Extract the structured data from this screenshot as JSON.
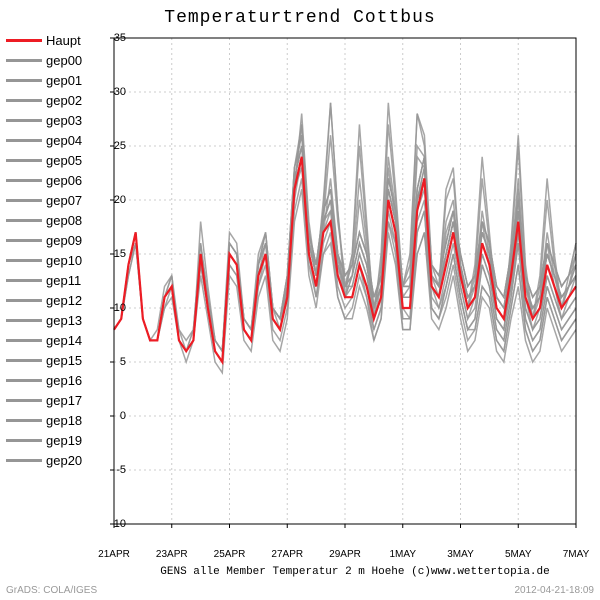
{
  "title": "Temperaturtrend Cottbus",
  "subtitle": "GENS alle Member Temperatur 2 m Hoehe (c)www.wettertopia.de",
  "bottom_left": "GrADS: COLA/IGES",
  "bottom_right": "2012-04-21-18:09",
  "plot": {
    "type": "line",
    "background_color": "#ffffff",
    "border_color": "#000000",
    "grid_color": "#cccccc",
    "ylim": [
      -10,
      35
    ],
    "ytick_step": 5,
    "yticks": [
      -10,
      -5,
      0,
      5,
      10,
      15,
      20,
      25,
      30,
      35
    ],
    "xlim": [
      0,
      64
    ],
    "xticks": [
      0,
      8,
      16,
      24,
      32,
      40,
      48,
      56,
      64
    ],
    "xtick_labels": [
      "21APR",
      "23APR",
      "25APR",
      "27APR",
      "29APR",
      "1MAY",
      "3MAY",
      "5MAY",
      "7MAY"
    ],
    "member_color": "#969696",
    "member_line_width": 1.5,
    "haupt_color": "#ed1c24",
    "haupt_line_width": 2.2,
    "haupt": [
      8,
      9,
      14,
      17,
      9,
      7,
      7,
      11,
      12,
      7,
      6,
      7,
      15,
      10,
      6,
      5,
      15,
      14,
      8,
      7,
      13,
      15,
      9,
      8,
      11,
      21,
      24,
      15,
      12,
      17,
      18,
      13,
      11,
      11,
      14,
      12,
      9,
      11,
      20,
      17,
      10,
      10,
      19,
      22,
      12,
      11,
      14,
      17,
      13,
      10,
      11,
      16,
      14,
      10,
      9,
      13,
      18,
      11,
      9,
      10,
      14,
      12,
      10,
      11,
      12
    ],
    "members": [
      [
        8,
        9,
        14,
        17,
        9,
        7,
        7,
        11,
        12,
        7,
        6,
        7,
        15,
        10,
        6,
        5,
        15,
        14,
        8,
        7,
        13,
        15,
        9,
        8,
        12,
        21,
        23,
        15,
        12,
        17,
        19,
        13,
        11,
        12,
        15,
        13,
        9,
        11,
        20,
        17,
        10,
        10,
        19,
        21,
        12,
        11,
        14,
        17,
        13,
        10,
        11,
        16,
        14,
        10,
        9,
        13,
        18,
        11,
        9,
        10,
        14,
        12,
        10,
        11,
        12
      ],
      [
        8,
        9,
        13,
        16,
        9,
        7,
        7,
        10,
        12,
        7,
        6,
        7,
        14,
        10,
        6,
        5,
        14,
        13,
        8,
        7,
        12,
        15,
        9,
        8,
        11,
        20,
        24,
        16,
        13,
        18,
        20,
        14,
        11,
        13,
        16,
        14,
        10,
        12,
        21,
        18,
        11,
        11,
        20,
        23,
        13,
        11,
        15,
        18,
        14,
        11,
        12,
        17,
        15,
        11,
        10,
        14,
        19,
        12,
        10,
        11,
        15,
        13,
        11,
        12,
        13
      ],
      [
        8,
        9,
        14,
        17,
        9,
        7,
        7,
        11,
        13,
        7,
        6,
        7,
        15,
        11,
        7,
        6,
        16,
        15,
        9,
        8,
        14,
        16,
        10,
        9,
        12,
        22,
        25,
        16,
        13,
        18,
        19,
        14,
        12,
        12,
        15,
        13,
        10,
        12,
        21,
        18,
        11,
        11,
        20,
        22,
        13,
        12,
        15,
        18,
        13,
        10,
        11,
        16,
        14,
        10,
        9,
        13,
        18,
        11,
        9,
        10,
        14,
        12,
        10,
        11,
        12
      ],
      [
        8,
        9,
        14,
        16,
        9,
        7,
        7,
        11,
        12,
        7,
        6,
        7,
        14,
        10,
        6,
        5,
        14,
        13,
        8,
        7,
        12,
        14,
        8,
        7,
        10,
        19,
        22,
        14,
        11,
        16,
        18,
        12,
        10,
        11,
        14,
        12,
        8,
        10,
        19,
        16,
        9,
        9,
        18,
        20,
        11,
        10,
        13,
        16,
        12,
        9,
        10,
        15,
        13,
        9,
        8,
        12,
        17,
        10,
        8,
        9,
        13,
        11,
        9,
        10,
        11
      ],
      [
        8,
        9,
        14,
        17,
        9,
        7,
        7,
        11,
        12,
        8,
        6,
        8,
        16,
        11,
        7,
        6,
        16,
        15,
        9,
        8,
        14,
        17,
        10,
        9,
        13,
        23,
        26,
        17,
        14,
        19,
        21,
        15,
        13,
        14,
        17,
        15,
        11,
        13,
        22,
        19,
        12,
        12,
        21,
        24,
        14,
        13,
        16,
        19,
        15,
        12,
        13,
        18,
        16,
        12,
        11,
        15,
        20,
        13,
        11,
        12,
        16,
        14,
        12,
        13,
        14
      ],
      [
        8,
        9,
        14,
        17,
        9,
        7,
        7,
        11,
        13,
        7,
        6,
        8,
        15,
        11,
        7,
        6,
        16,
        15,
        9,
        8,
        14,
        16,
        10,
        9,
        12,
        22,
        25,
        16,
        13,
        18,
        20,
        14,
        12,
        13,
        16,
        14,
        10,
        12,
        21,
        18,
        11,
        11,
        20,
        22,
        13,
        12,
        15,
        18,
        14,
        11,
        12,
        17,
        15,
        11,
        10,
        14,
        19,
        12,
        10,
        11,
        15,
        13,
        11,
        12,
        13
      ],
      [
        8,
        9,
        13,
        16,
        9,
        7,
        7,
        10,
        11,
        7,
        5,
        7,
        13,
        9,
        5,
        4,
        13,
        12,
        7,
        6,
        11,
        13,
        7,
        6,
        9,
        18,
        21,
        13,
        10,
        15,
        17,
        11,
        9,
        10,
        13,
        11,
        7,
        9,
        18,
        15,
        8,
        8,
        17,
        19,
        10,
        9,
        12,
        15,
        11,
        8,
        9,
        14,
        12,
        8,
        7,
        11,
        16,
        9,
        7,
        8,
        12,
        10,
        8,
        9,
        10
      ],
      [
        8,
        9,
        14,
        17,
        9,
        7,
        7,
        11,
        12,
        7,
        6,
        7,
        15,
        10,
        6,
        5,
        15,
        14,
        8,
        7,
        13,
        15,
        9,
        8,
        11,
        21,
        24,
        15,
        12,
        18,
        26,
        18,
        13,
        14,
        22,
        16,
        10,
        13,
        24,
        19,
        12,
        13,
        25,
        24,
        13,
        12,
        18,
        20,
        13,
        10,
        12,
        19,
        15,
        10,
        9,
        14,
        22,
        12,
        9,
        11,
        17,
        13,
        10,
        12,
        14
      ],
      [
        8,
        9,
        14,
        17,
        9,
        7,
        7,
        11,
        12,
        7,
        6,
        7,
        15,
        10,
        6,
        5,
        15,
        14,
        8,
        7,
        13,
        15,
        9,
        8,
        11,
        21,
        27,
        17,
        13,
        19,
        29,
        19,
        12,
        15,
        25,
        17,
        10,
        14,
        27,
        20,
        12,
        14,
        28,
        25,
        13,
        12,
        20,
        22,
        14,
        10,
        13,
        22,
        16,
        10,
        9,
        15,
        25,
        13,
        9,
        12,
        20,
        14,
        10,
        12,
        15
      ],
      [
        8,
        9,
        14,
        17,
        9,
        7,
        7,
        11,
        12,
        7,
        6,
        7,
        15,
        10,
        6,
        5,
        15,
        14,
        8,
        7,
        13,
        16,
        10,
        8,
        12,
        22,
        25,
        16,
        13,
        18,
        20,
        14,
        12,
        13,
        16,
        14,
        10,
        12,
        21,
        18,
        11,
        11,
        20,
        22,
        13,
        12,
        15,
        18,
        14,
        11,
        12,
        17,
        15,
        11,
        10,
        14,
        19,
        12,
        10,
        11,
        15,
        13,
        11,
        12,
        13
      ],
      [
        8,
        9,
        14,
        17,
        9,
        7,
        7,
        11,
        12,
        7,
        6,
        7,
        15,
        10,
        6,
        5,
        15,
        14,
        8,
        7,
        13,
        15,
        9,
        8,
        11,
        21,
        24,
        15,
        12,
        17,
        18,
        13,
        11,
        11,
        14,
        11,
        8,
        10,
        18,
        16,
        9,
        9,
        17,
        19,
        10,
        9,
        12,
        15,
        11,
        8,
        9,
        14,
        12,
        8,
        7,
        11,
        16,
        9,
        7,
        8,
        12,
        10,
        8,
        9,
        10
      ],
      [
        8,
        9,
        14,
        17,
        9,
        7,
        7,
        11,
        12,
        7,
        6,
        7,
        15,
        10,
        6,
        5,
        15,
        14,
        8,
        7,
        13,
        15,
        9,
        8,
        11,
        21,
        24,
        15,
        12,
        17,
        18,
        13,
        11,
        11,
        14,
        12,
        9,
        11,
        20,
        17,
        10,
        9,
        15,
        17,
        10,
        9,
        11,
        14,
        10,
        7,
        8,
        12,
        11,
        7,
        6,
        10,
        14,
        8,
        6,
        7,
        11,
        9,
        7,
        8,
        9
      ],
      [
        8,
        9,
        14,
        17,
        9,
        7,
        7,
        11,
        12,
        7,
        6,
        7,
        15,
        10,
        6,
        5,
        15,
        14,
        8,
        7,
        13,
        15,
        9,
        8,
        11,
        21,
        24,
        15,
        12,
        17,
        18,
        13,
        11,
        11,
        14,
        12,
        9,
        11,
        20,
        17,
        10,
        10,
        19,
        22,
        12,
        11,
        14,
        17,
        13,
        10,
        11,
        15,
        13,
        9,
        8,
        12,
        17,
        10,
        8,
        9,
        13,
        11,
        9,
        10,
        11
      ],
      [
        8,
        9,
        14,
        17,
        9,
        7,
        7,
        11,
        12,
        7,
        6,
        7,
        15,
        10,
        6,
        5,
        15,
        14,
        8,
        7,
        13,
        15,
        9,
        8,
        11,
        21,
        24,
        15,
        12,
        17,
        22,
        15,
        11,
        13,
        20,
        15,
        9,
        12,
        23,
        18,
        11,
        12,
        24,
        23,
        12,
        11,
        17,
        19,
        12,
        9,
        11,
        18,
        14,
        9,
        8,
        13,
        21,
        11,
        8,
        10,
        16,
        12,
        9,
        11,
        13
      ],
      [
        8,
        9,
        14,
        17,
        9,
        7,
        7,
        11,
        12,
        7,
        6,
        7,
        18,
        12,
        7,
        6,
        17,
        16,
        9,
        8,
        15,
        17,
        10,
        9,
        13,
        23,
        27,
        17,
        14,
        19,
        21,
        15,
        12,
        14,
        17,
        15,
        11,
        13,
        22,
        19,
        12,
        12,
        21,
        24,
        14,
        13,
        16,
        19,
        15,
        12,
        13,
        18,
        16,
        12,
        11,
        15,
        20,
        13,
        11,
        12,
        16,
        14,
        12,
        13,
        15
      ],
      [
        8,
        9,
        14,
        17,
        9,
        7,
        7,
        11,
        12,
        7,
        6,
        7,
        15,
        10,
        6,
        5,
        15,
        14,
        8,
        7,
        13,
        15,
        9,
        8,
        11,
        21,
        24,
        15,
        11,
        15,
        16,
        11,
        9,
        9,
        12,
        10,
        7,
        9,
        17,
        14,
        8,
        8,
        15,
        17,
        9,
        8,
        10,
        13,
        9,
        6,
        7,
        11,
        10,
        6,
        5,
        9,
        12,
        7,
        5,
        6,
        10,
        8,
        6,
        7,
        8
      ],
      [
        8,
        9,
        14,
        17,
        9,
        7,
        7,
        11,
        12,
        7,
        6,
        7,
        15,
        10,
        6,
        5,
        15,
        14,
        8,
        7,
        13,
        15,
        9,
        8,
        11,
        21,
        24,
        15,
        12,
        17,
        18,
        13,
        11,
        11,
        14,
        12,
        9,
        11,
        20,
        17,
        11,
        11,
        20,
        23,
        13,
        12,
        15,
        18,
        14,
        11,
        12,
        17,
        15,
        11,
        10,
        14,
        19,
        12,
        10,
        11,
        15,
        13,
        11,
        12,
        14
      ],
      [
        8,
        9,
        14,
        17,
        9,
        7,
        7,
        11,
        12,
        7,
        6,
        7,
        15,
        10,
        6,
        5,
        15,
        14,
        8,
        7,
        13,
        15,
        9,
        8,
        11,
        21,
        28,
        18,
        13,
        20,
        29,
        19,
        11,
        15,
        27,
        18,
        9,
        15,
        29,
        21,
        12,
        15,
        28,
        26,
        14,
        12,
        21,
        23,
        14,
        10,
        14,
        24,
        17,
        10,
        9,
        16,
        26,
        14,
        9,
        13,
        22,
        15,
        10,
        13,
        16
      ],
      [
        8,
        9,
        14,
        17,
        9,
        7,
        8,
        12,
        13,
        8,
        7,
        8,
        16,
        11,
        7,
        6,
        16,
        15,
        9,
        8,
        14,
        17,
        10,
        9,
        13,
        23,
        26,
        17,
        14,
        19,
        21,
        15,
        13,
        14,
        17,
        15,
        11,
        13,
        22,
        19,
        12,
        12,
        21,
        24,
        14,
        13,
        16,
        19,
        15,
        12,
        13,
        18,
        16,
        12,
        11,
        15,
        20,
        13,
        11,
        12,
        16,
        14,
        12,
        13,
        16
      ],
      [
        8,
        9,
        14,
        17,
        9,
        7,
        7,
        11,
        12,
        7,
        6,
        7,
        15,
        10,
        6,
        5,
        15,
        14,
        8,
        7,
        13,
        15,
        9,
        8,
        11,
        21,
        24,
        15,
        12,
        17,
        18,
        13,
        11,
        11,
        14,
        12,
        9,
        11,
        20,
        17,
        10,
        10,
        19,
        22,
        12,
        10,
        12,
        15,
        11,
        8,
        8,
        12,
        11,
        7,
        6,
        10,
        14,
        8,
        6,
        7,
        11,
        9,
        7,
        8,
        9
      ],
      [
        8,
        9,
        14,
        17,
        9,
        7,
        7,
        11,
        12,
        7,
        6,
        7,
        15,
        10,
        6,
        5,
        15,
        14,
        8,
        7,
        13,
        15,
        9,
        8,
        11,
        21,
        24,
        15,
        12,
        17,
        18,
        13,
        11,
        11,
        14,
        12,
        9,
        11,
        20,
        17,
        10,
        10,
        19,
        22,
        12,
        11,
        14,
        17,
        13,
        10,
        11,
        16,
        14,
        10,
        9,
        13,
        18,
        11,
        9,
        10,
        14,
        12,
        10,
        11,
        12
      ]
    ],
    "legend": [
      {
        "label": "Haupt",
        "color": "#ed1c24"
      },
      {
        "label": "gep00",
        "color": "#969696"
      },
      {
        "label": "gep01",
        "color": "#969696"
      },
      {
        "label": "gep02",
        "color": "#969696"
      },
      {
        "label": "gep03",
        "color": "#969696"
      },
      {
        "label": "gep04",
        "color": "#969696"
      },
      {
        "label": "gep05",
        "color": "#969696"
      },
      {
        "label": "gep06",
        "color": "#969696"
      },
      {
        "label": "gep07",
        "color": "#969696"
      },
      {
        "label": "gep08",
        "color": "#969696"
      },
      {
        "label": "gep09",
        "color": "#969696"
      },
      {
        "label": "gep10",
        "color": "#969696"
      },
      {
        "label": "gep11",
        "color": "#969696"
      },
      {
        "label": "gep12",
        "color": "#969696"
      },
      {
        "label": "gep13",
        "color": "#969696"
      },
      {
        "label": "gep14",
        "color": "#969696"
      },
      {
        "label": "gep15",
        "color": "#969696"
      },
      {
        "label": "gep16",
        "color": "#969696"
      },
      {
        "label": "gep17",
        "color": "#969696"
      },
      {
        "label": "gep18",
        "color": "#969696"
      },
      {
        "label": "gep19",
        "color": "#969696"
      },
      {
        "label": "gep20",
        "color": "#969696"
      }
    ]
  }
}
